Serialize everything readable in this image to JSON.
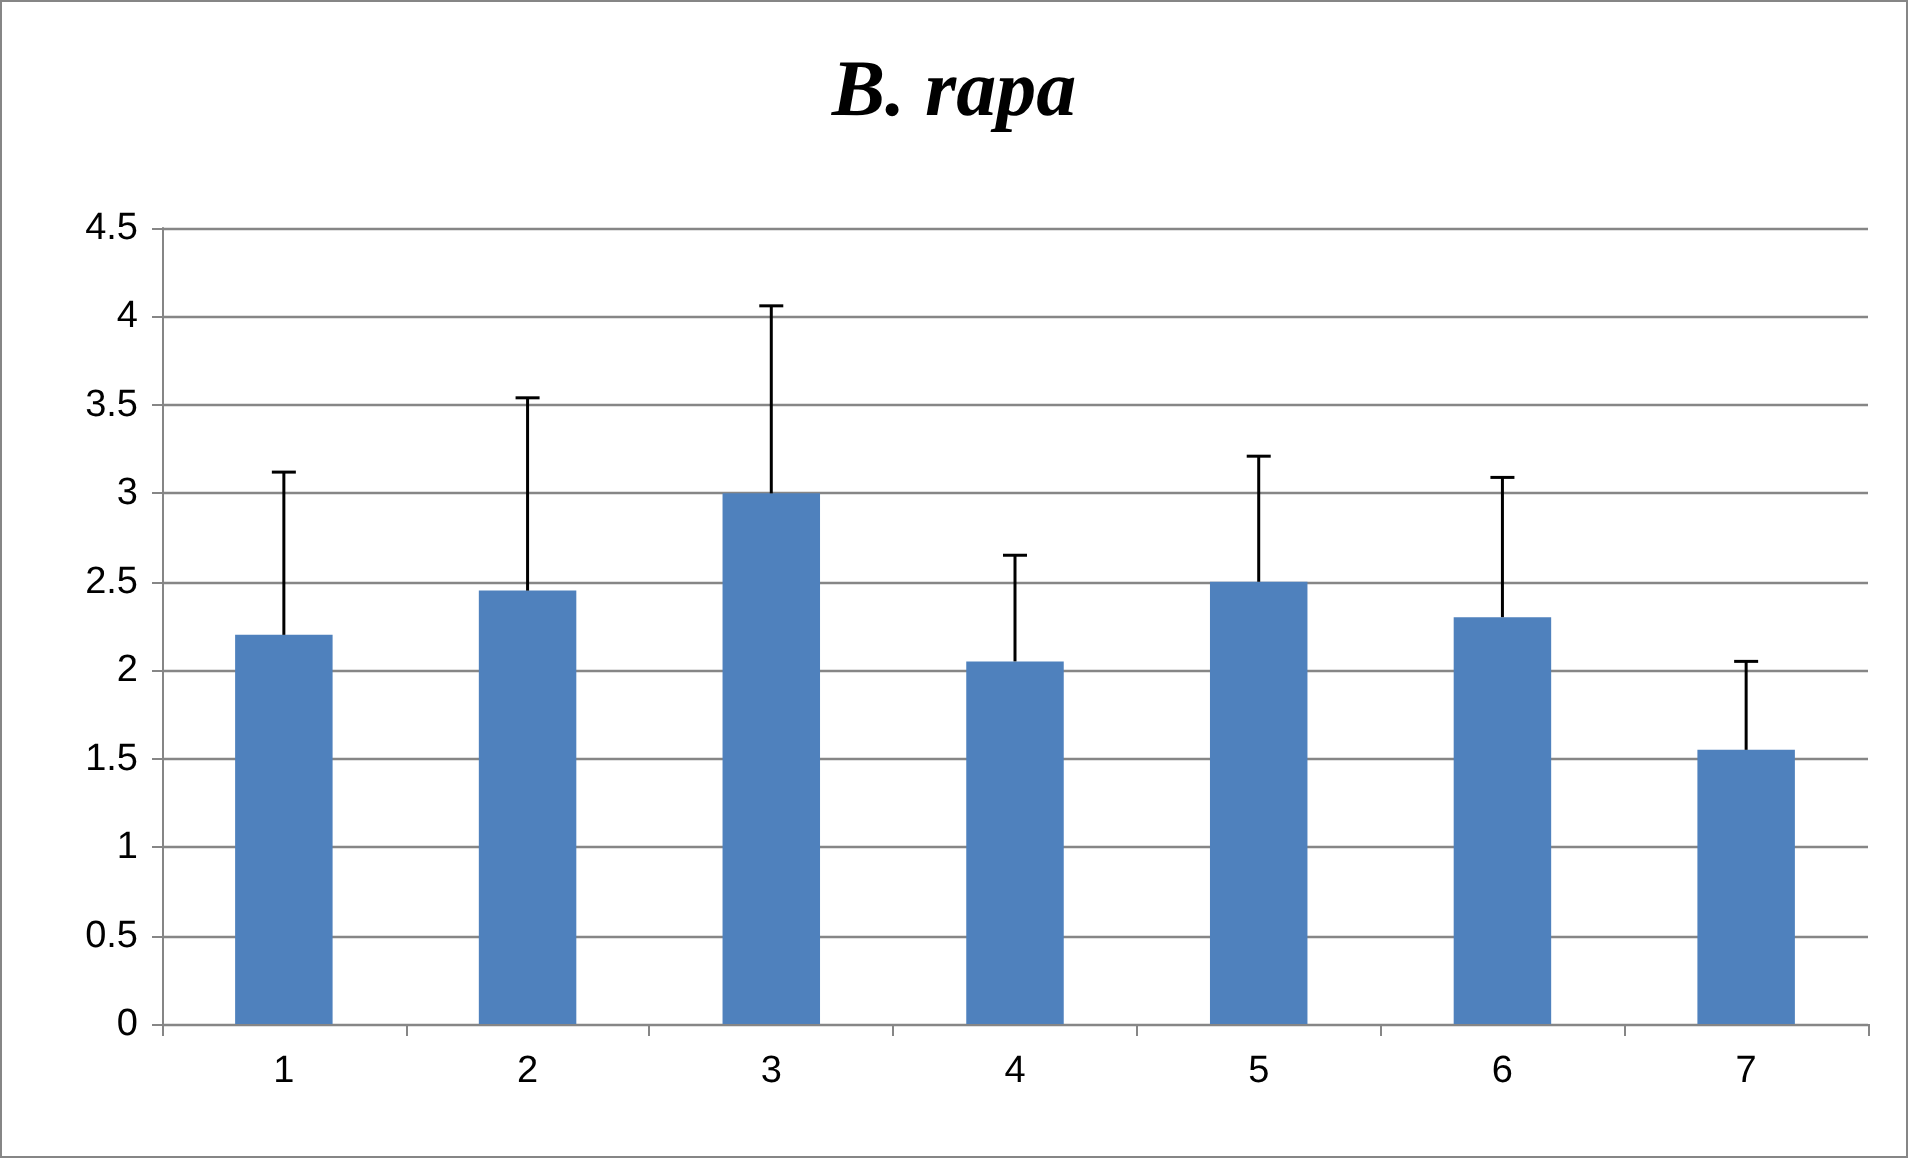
{
  "chart_data": {
    "type": "bar",
    "title": "B. rapa",
    "categories": [
      "1",
      "2",
      "3",
      "4",
      "5",
      "6",
      "7"
    ],
    "values": [
      2.2,
      2.45,
      3.0,
      2.05,
      2.5,
      2.3,
      1.55
    ],
    "errors": [
      [
        2.2,
        3.12
      ],
      [
        2.45,
        3.54
      ],
      [
        3.0,
        4.06
      ],
      [
        2.05,
        2.65
      ],
      [
        2.5,
        3.21
      ],
      [
        2.3,
        3.09
      ],
      [
        1.55,
        2.05
      ]
    ],
    "color": "#4f81bd",
    "ylim": [
      0,
      4.5
    ],
    "yticks": [
      0,
      0.5,
      1,
      1.5,
      2,
      2.5,
      3,
      3.5,
      4,
      4.5
    ],
    "grid": "y"
  }
}
